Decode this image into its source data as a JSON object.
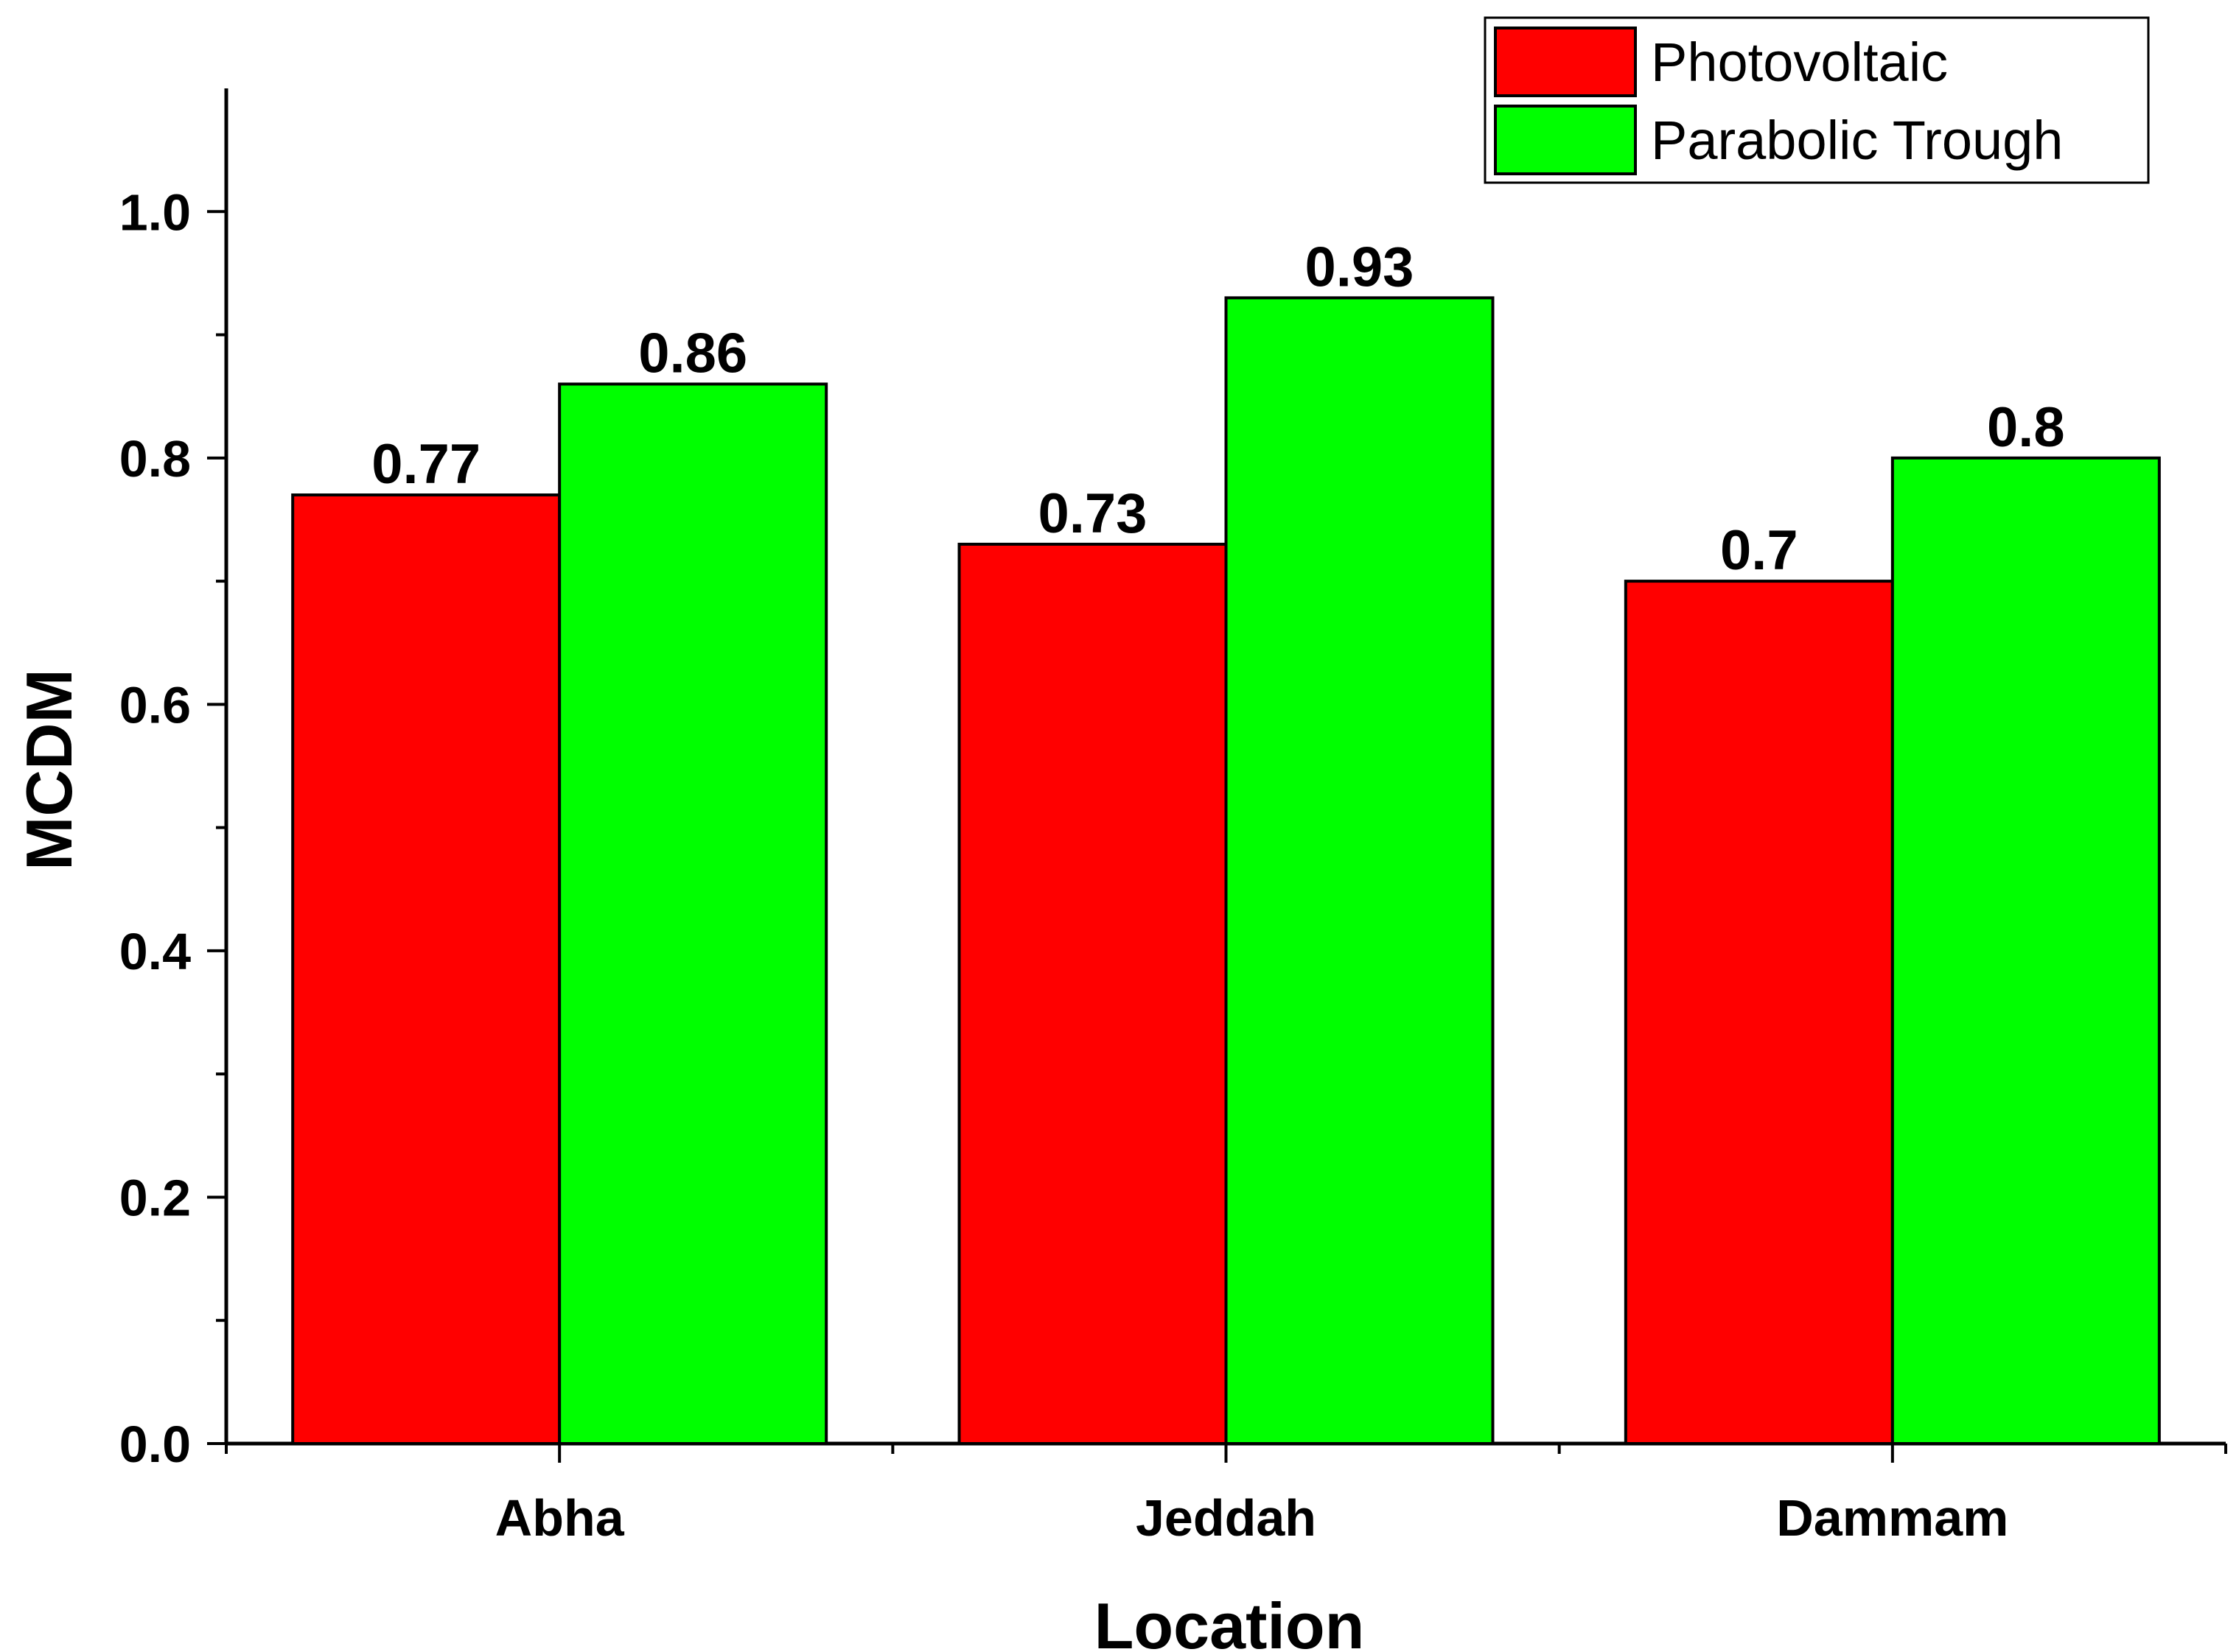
{
  "chart_data": {
    "type": "bar",
    "title": "",
    "xlabel": "Location",
    "ylabel": "MCDM",
    "ylim": [
      0,
      1.1
    ],
    "yticks": [
      0.0,
      0.2,
      0.4,
      0.6,
      0.8,
      1.0
    ],
    "ytick_labels": [
      "0.0",
      "0.2",
      "0.4",
      "0.6",
      "0.8",
      "1.0"
    ],
    "categories": [
      "Abha",
      "Jeddah",
      "Dammam"
    ],
    "series": [
      {
        "name": "Photovoltaic",
        "color": "#ff0000",
        "values": [
          0.77,
          0.73,
          0.7
        ],
        "labels": [
          "0.77",
          "0.73",
          "0.7"
        ]
      },
      {
        "name": "Parabolic Trough",
        "color": "#00ff00",
        "values": [
          0.86,
          0.93,
          0.8
        ],
        "labels": [
          "0.86",
          "0.93",
          "0.8"
        ]
      }
    ],
    "grid": false,
    "legend_position": "top-right"
  }
}
